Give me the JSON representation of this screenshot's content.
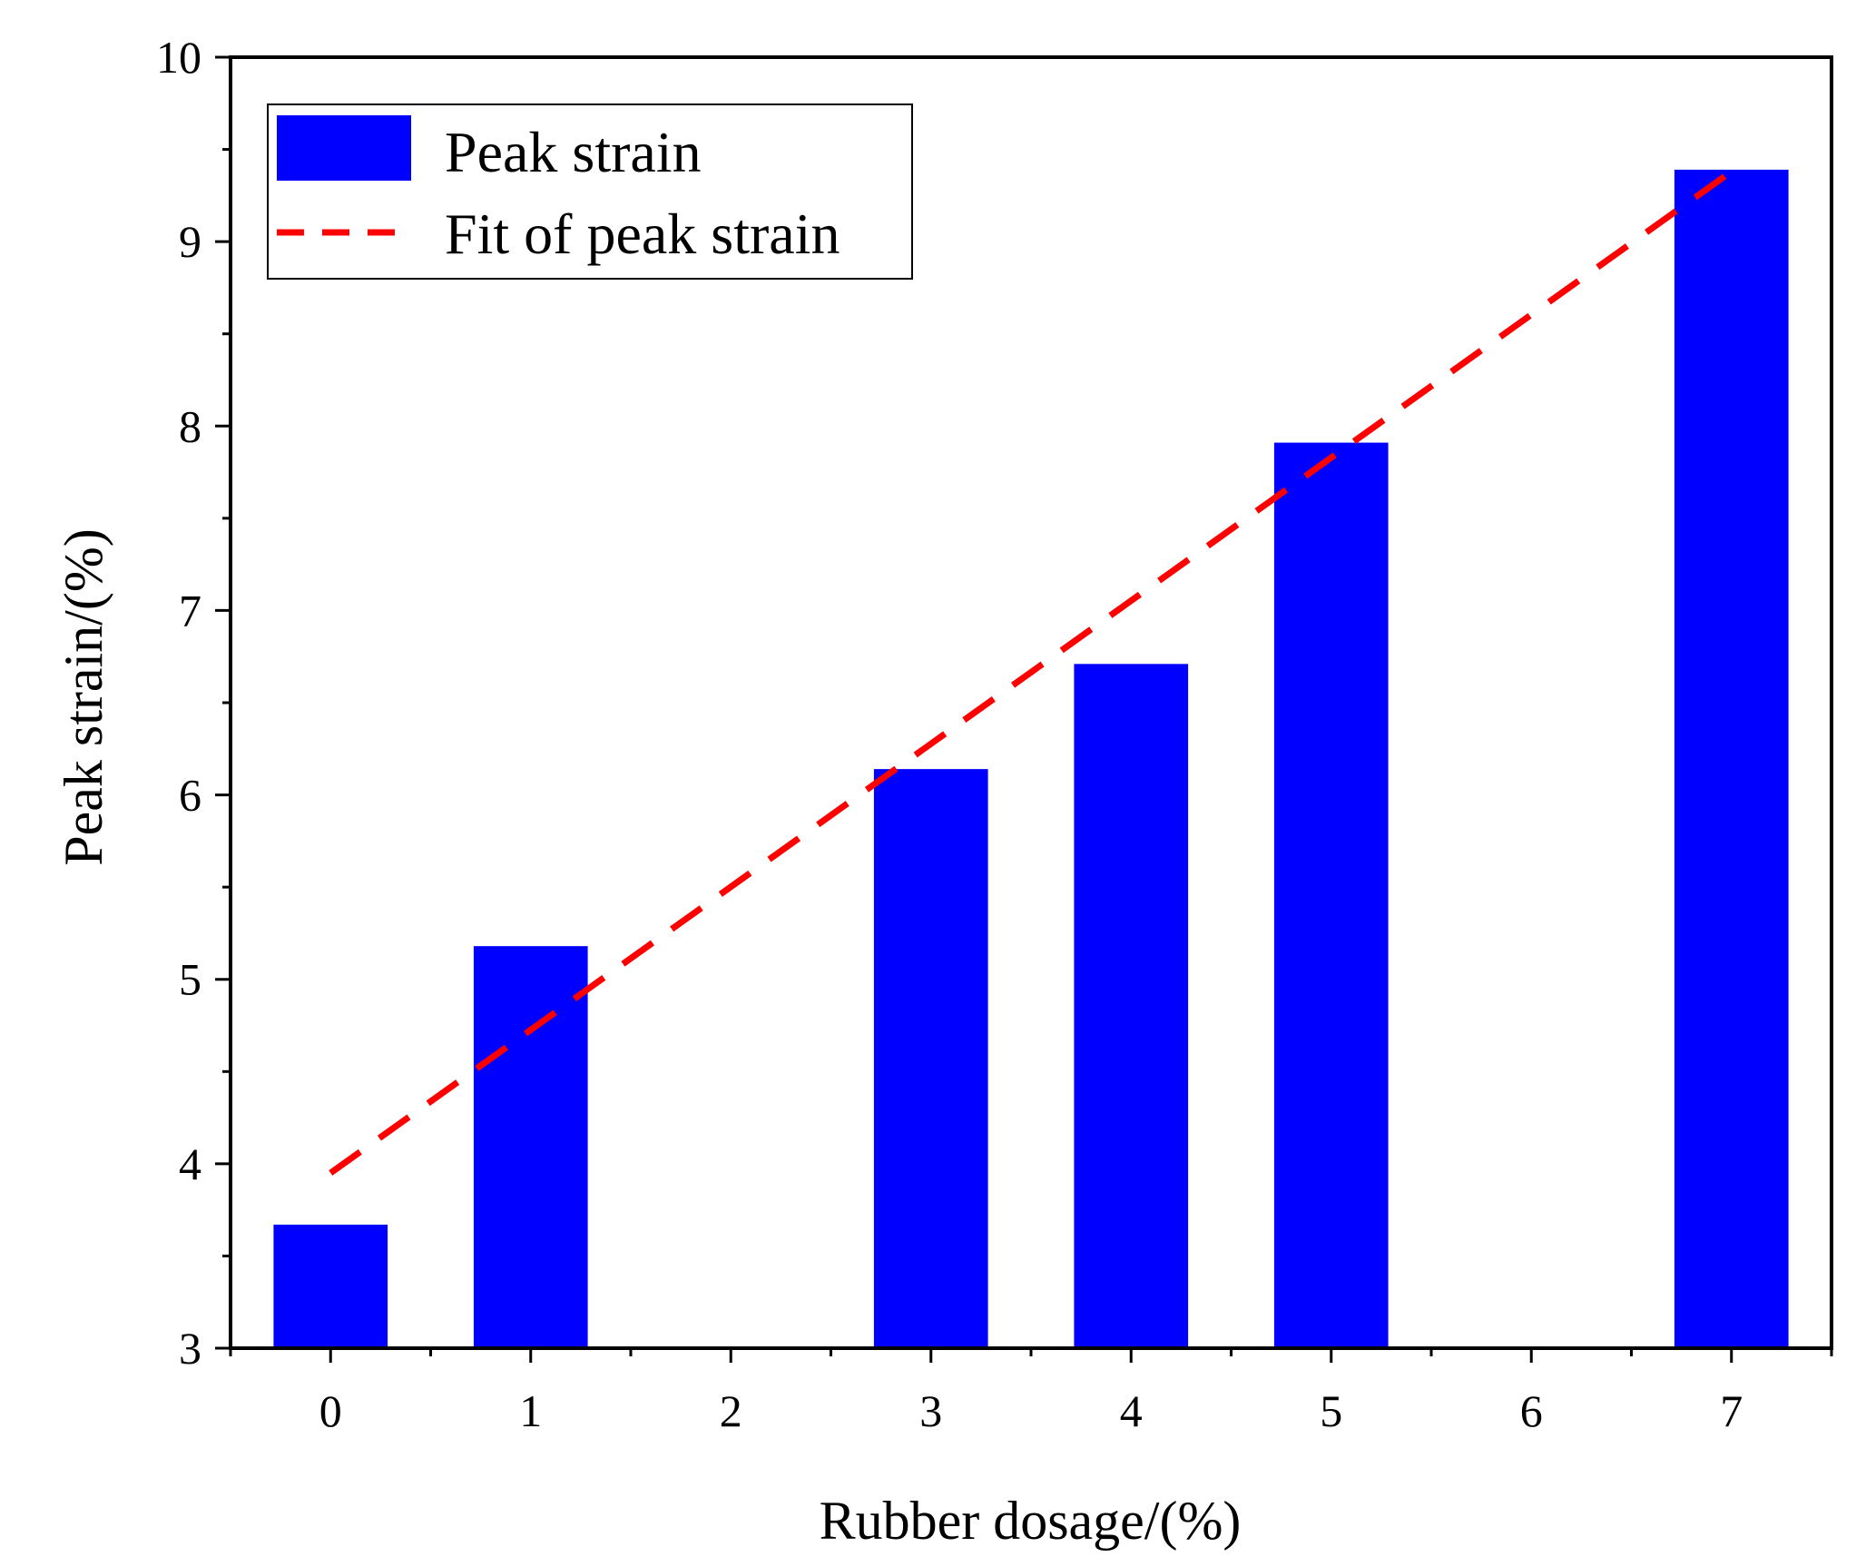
{
  "chart_data": {
    "type": "bar",
    "title": "",
    "xlabel": "Rubber dosage/(%)",
    "ylabel": "Peak strain/(%)",
    "xlim": [
      -0.5,
      7.5
    ],
    "ylim": [
      3,
      10
    ],
    "xticks": [
      0,
      1,
      2,
      3,
      4,
      5,
      6,
      7
    ],
    "yticks": [
      3,
      4,
      5,
      6,
      7,
      8,
      9,
      10
    ],
    "grid": false,
    "legend_position": "top-left",
    "series": [
      {
        "name": "Peak strain",
        "kind": "bar",
        "x": [
          0,
          1,
          3,
          4,
          5,
          7
        ],
        "values": [
          3.67,
          5.18,
          6.14,
          6.71,
          7.91,
          9.39
        ]
      },
      {
        "name": "Fit of peak strain",
        "kind": "line",
        "style": "dashed",
        "x": [
          0,
          7
        ],
        "values": [
          3.95,
          9.38
        ]
      }
    ]
  },
  "colors": {
    "bar": "#0000ff",
    "fit_line": "#ff0000",
    "axis": "#000000"
  }
}
